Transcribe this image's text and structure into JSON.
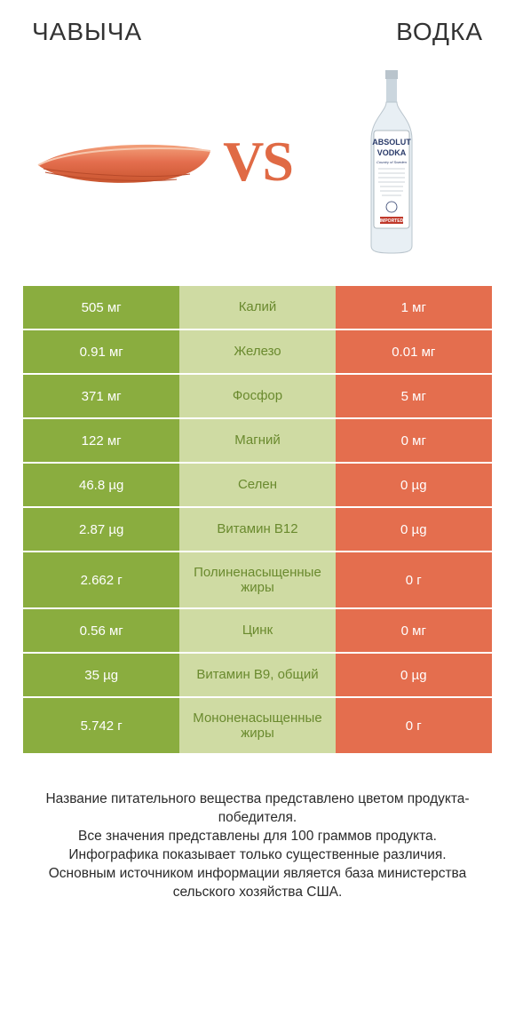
{
  "titles": {
    "left": "ЧАВЫЧА",
    "right": "ВОДКА"
  },
  "vs": "VS",
  "chart": {
    "colors": {
      "left": "#8aad3f",
      "mid": "#cfdba3",
      "right": "#e46e4e",
      "mid_text_winner_left": "#6a8a2e",
      "mid_text_winner_right": "#c9562f",
      "cell_text": "#ffffff"
    },
    "rows": [
      {
        "left": "505 мг",
        "label": "Калий",
        "right": "1 мг",
        "winner": "left",
        "tall": false
      },
      {
        "left": "0.91 мг",
        "label": "Железо",
        "right": "0.01 мг",
        "winner": "left",
        "tall": false
      },
      {
        "left": "371 мг",
        "label": "Фосфор",
        "right": "5 мг",
        "winner": "left",
        "tall": false
      },
      {
        "left": "122 мг",
        "label": "Магний",
        "right": "0 мг",
        "winner": "left",
        "tall": false
      },
      {
        "left": "46.8 µg",
        "label": "Селен",
        "right": "0 µg",
        "winner": "left",
        "tall": false
      },
      {
        "left": "2.87 µg",
        "label": "Витамин B12",
        "right": "0 µg",
        "winner": "left",
        "tall": false
      },
      {
        "left": "2.662 г",
        "label": "Полиненасыщенные жиры",
        "right": "0 г",
        "winner": "left",
        "tall": true
      },
      {
        "left": "0.56 мг",
        "label": "Цинк",
        "right": "0 мг",
        "winner": "left",
        "tall": false
      },
      {
        "left": "35 µg",
        "label": "Витамин B9, общий",
        "right": "0 µg",
        "winner": "left",
        "tall": false
      },
      {
        "left": "5.742 г",
        "label": "Мононенасыщенные жиры",
        "right": "0 г",
        "winner": "left",
        "tall": true
      }
    ]
  },
  "footnote": "Название питательного вещества представлено цветом продукта-победителя.\nВсе значения представлены для 100 граммов продукта.\nИнфографика показывает только существенные различия.\nОсновным источником информации является база министерства сельского хозяйства США.",
  "salmon_colors": {
    "top": "#f3a07a",
    "mid": "#e46e4e",
    "bottom": "#c9562f"
  },
  "bottle_colors": {
    "glass": "#dbe6ee",
    "cap": "#b9c4cc",
    "label": "#ffffff",
    "label_border": "#9aa7b0",
    "text": "#2a3b6a",
    "red": "#c0392b"
  }
}
